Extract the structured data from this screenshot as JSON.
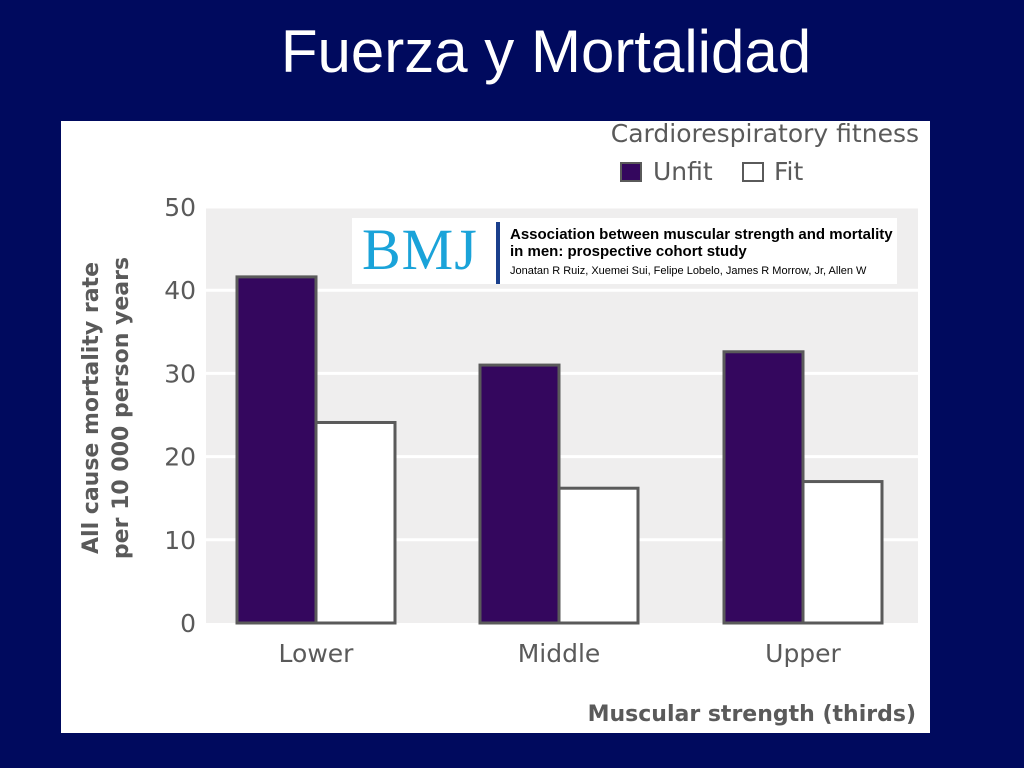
{
  "slide": {
    "title": "Fuerza y Mortalidad"
  },
  "colors": {
    "background": "#000a5e",
    "unfit": "#34075e",
    "fit": "#ffffff",
    "plot_bg": "#efeeee",
    "bar_stroke": "#5a5a5a",
    "text": "#5a5a5a"
  },
  "bmj": {
    "logo": "BMJ",
    "headline": "Association between muscular strength and mortality in men: prospective cohort study",
    "authors": "Jonatan R Ruiz, Xuemei Sui, Felipe Lobelo, James R Morrow, Jr, Allen W"
  },
  "chart_data": {
    "type": "bar",
    "categories": [
      "Lower",
      "Middle",
      "Upper"
    ],
    "series": [
      {
        "name": "Unfit",
        "values": [
          41.6,
          31.0,
          32.6
        ]
      },
      {
        "name": "Fit",
        "values": [
          24.1,
          16.2,
          17.0
        ]
      }
    ],
    "legend_title": "Cardiorespiratory fitness",
    "legend_position": "top-right",
    "ylabel_line1": "All cause mortality rate",
    "ylabel_line2": "per 10 000 person years",
    "xlabel": "Muscular strength (thirds)",
    "ylim": [
      0,
      50
    ],
    "yticks": [
      0,
      10,
      20,
      30,
      40,
      50
    ],
    "grid": true
  }
}
